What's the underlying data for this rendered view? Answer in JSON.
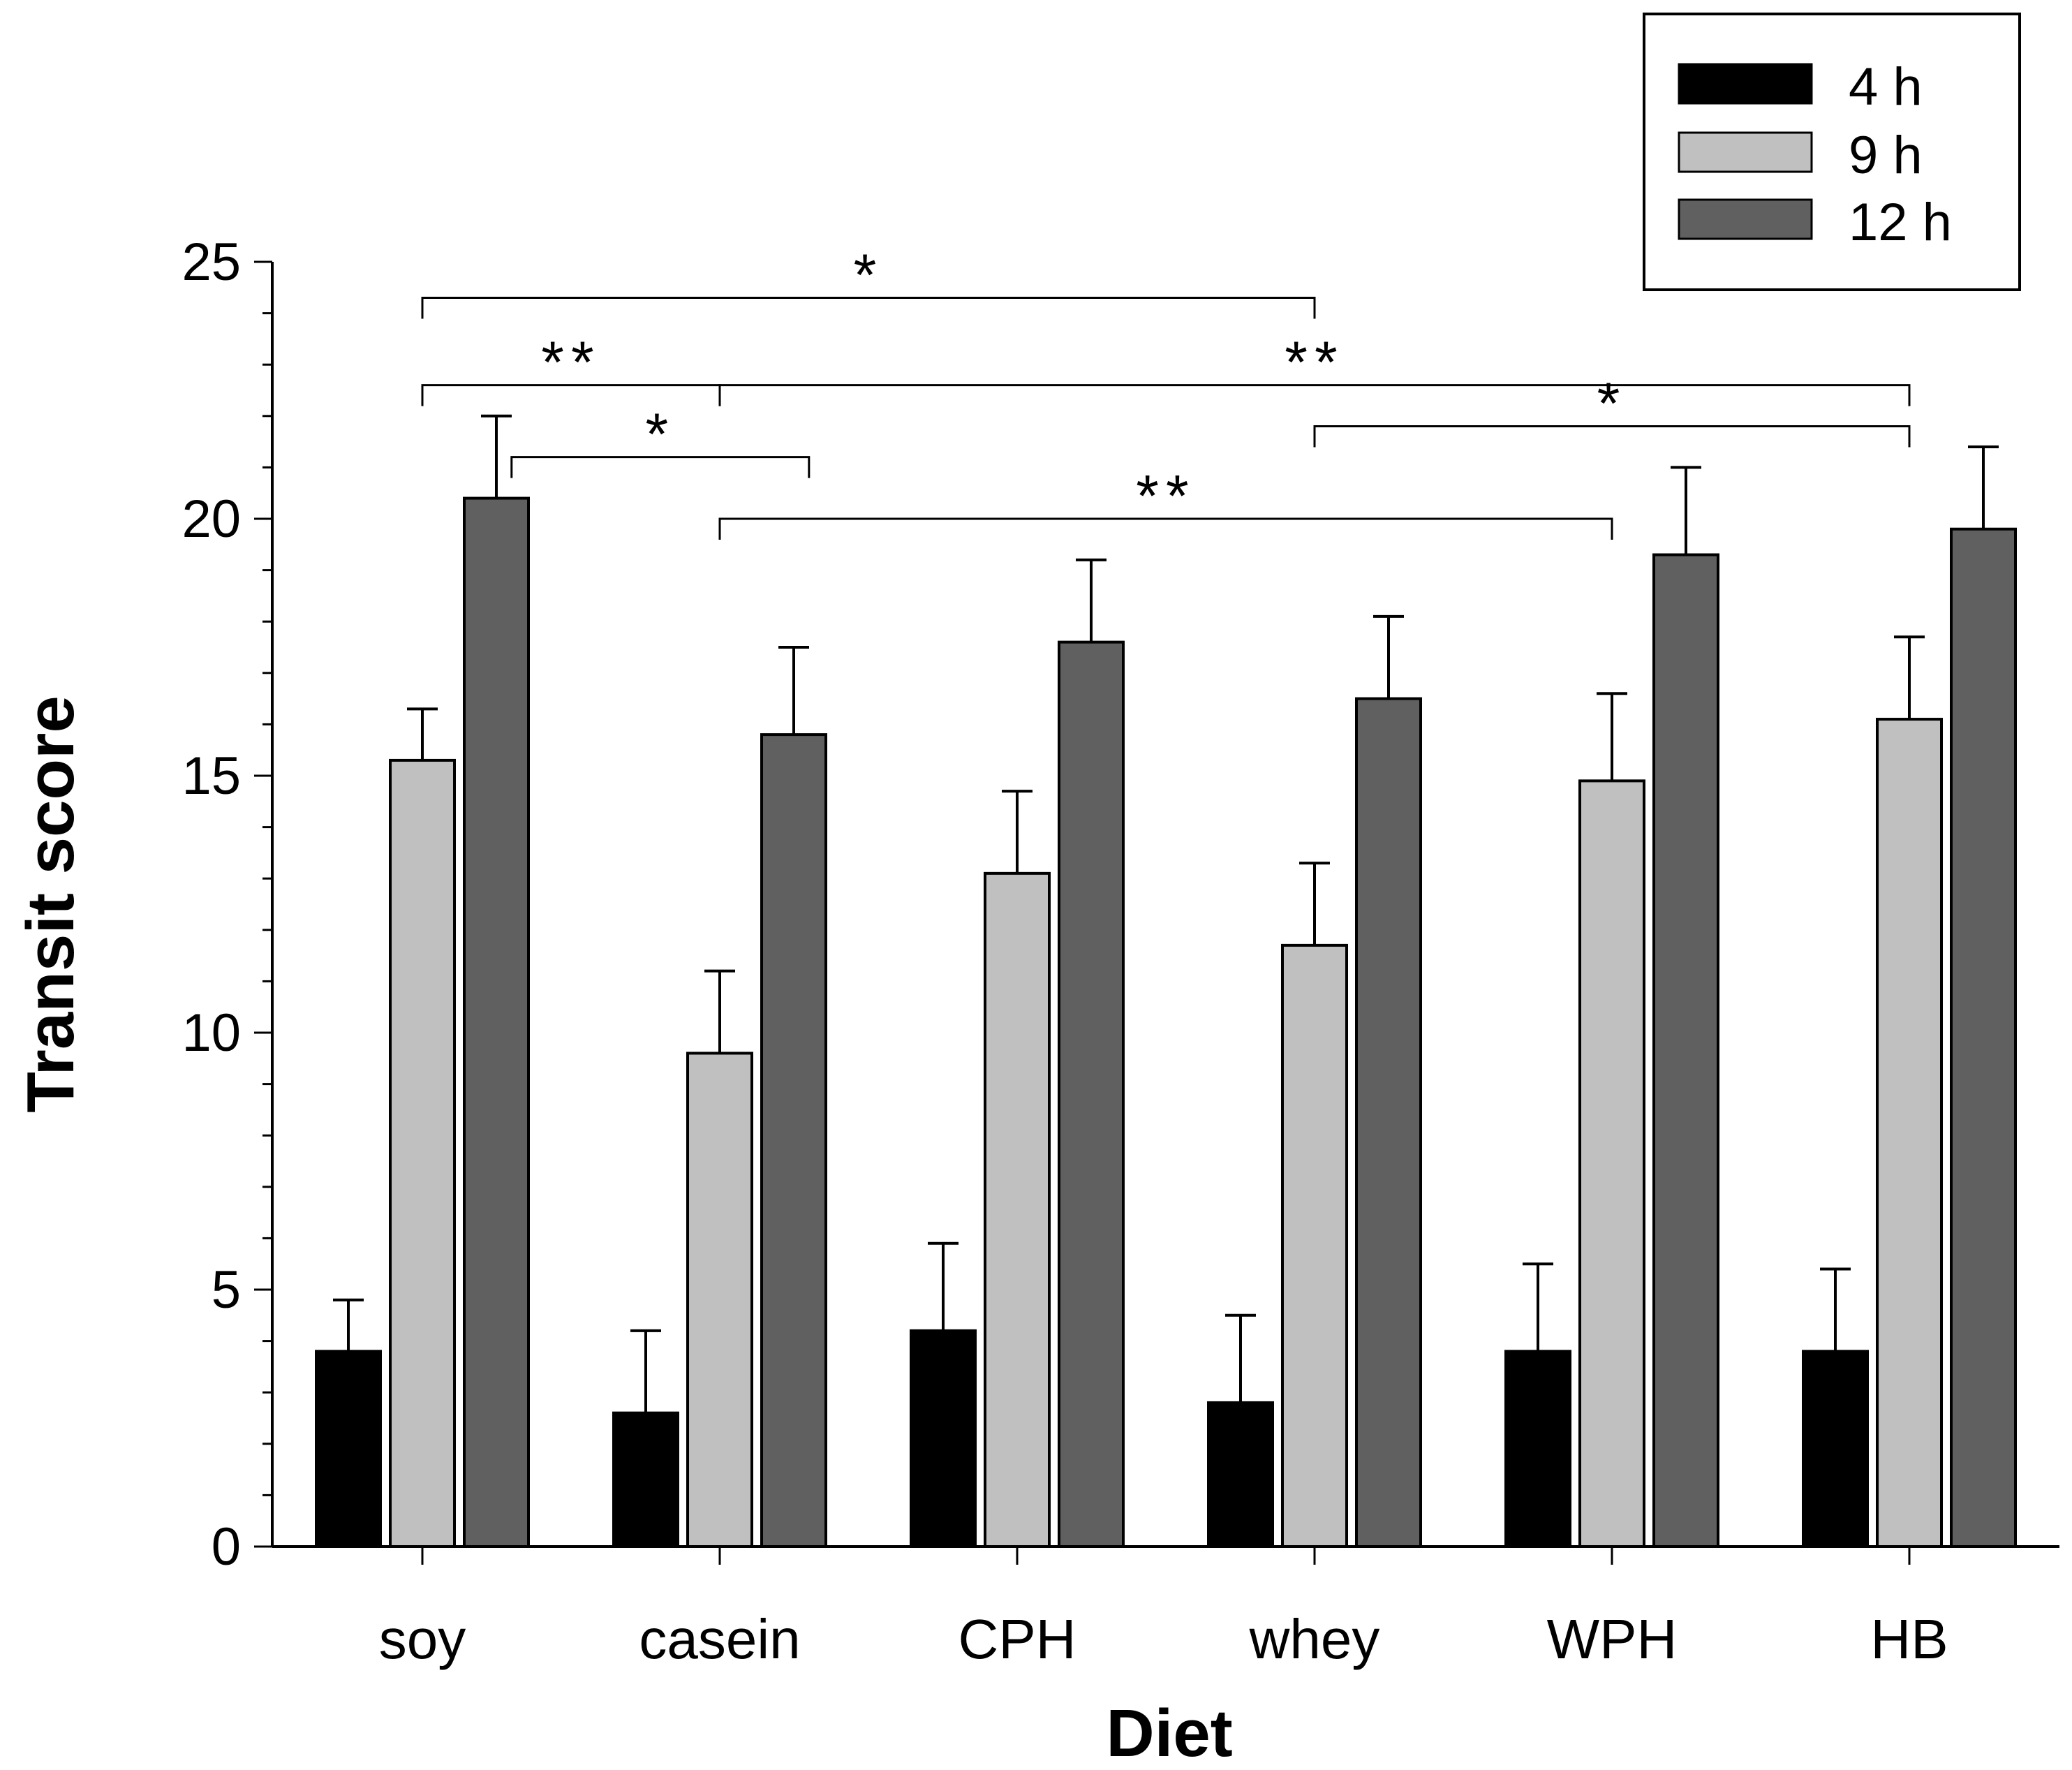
{
  "chart_data": {
    "type": "bar",
    "title": "",
    "xlabel": "Diet",
    "ylabel": "Transit score",
    "ylim": [
      0,
      25
    ],
    "major_ticks": [
      0,
      5,
      10,
      15,
      20,
      25
    ],
    "minor_tick_step": 1,
    "grid": false,
    "legend_position": "top-right",
    "categories": [
      "soy",
      "casein",
      "CPH",
      "whey",
      "WPH",
      "HB"
    ],
    "series": [
      {
        "name": "4 h",
        "color": "#000000",
        "values": [
          3.8,
          2.6,
          4.2,
          2.8,
          3.8,
          3.8
        ],
        "errors": [
          1.0,
          1.6,
          1.7,
          1.7,
          1.7,
          1.6
        ]
      },
      {
        "name": "9 h",
        "color": "#c0c0c0",
        "values": [
          15.3,
          9.6,
          13.1,
          11.7,
          14.9,
          16.1
        ],
        "errors": [
          1.0,
          1.6,
          1.6,
          1.6,
          1.7,
          1.6
        ]
      },
      {
        "name": "12 h",
        "color": "#606060",
        "values": [
          20.4,
          15.8,
          17.6,
          16.5,
          19.3,
          19.8
        ],
        "errors": [
          1.6,
          1.7,
          1.6,
          1.6,
          1.7,
          1.6
        ]
      }
    ],
    "significance": [
      {
        "from": 0,
        "to": 3,
        "label": "*",
        "level": 24.3
      },
      {
        "from": 0,
        "to": 1,
        "label": "**",
        "level": 22.6
      },
      {
        "from": 1,
        "to": 5,
        "label": "**",
        "level": 22.6
      },
      {
        "from": 0.3,
        "to": 1.3,
        "label": "*",
        "level": 21.2
      },
      {
        "from": 3,
        "to": 5,
        "label": "*",
        "level": 21.8
      },
      {
        "from": 1,
        "to": 4,
        "label": "**",
        "level": 20.0
      }
    ]
  }
}
